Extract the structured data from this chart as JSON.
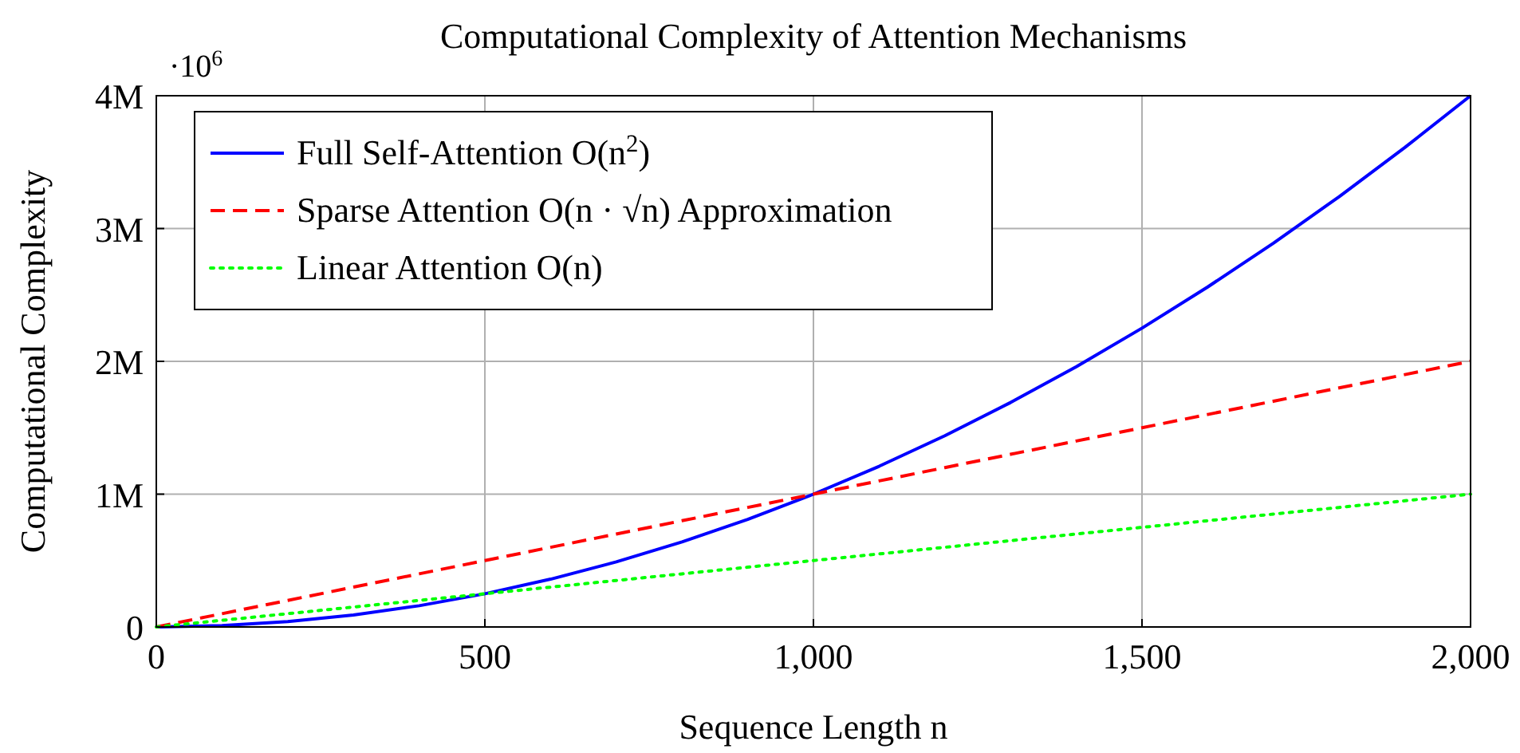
{
  "chart_data": {
    "type": "line",
    "title": "Computational Complexity of Attention Mechanisms",
    "xlabel": "Sequence Length $_{}$n",
    "ylabel": "Computational Complexity",
    "annotations": [
      "·10$^{6}$"
    ],
    "x": [
      0,
      100,
      200,
      300,
      400,
      500,
      600,
      700,
      800,
      900,
      1000,
      1100,
      1200,
      1300,
      1400,
      1500,
      1600,
      1700,
      1800,
      1900,
      2000
    ],
    "series": [
      {
        "name": "Full Self-Attention O(n$^{2}$)",
        "color": "#0000ff",
        "line_style": "solid",
        "values": [
          0,
          10000,
          40000,
          90000,
          160000,
          250000,
          360000,
          490000,
          640000,
          810000,
          1000000,
          1210000,
          1440000,
          1690000,
          1960000,
          2250000,
          2560000,
          2890000,
          3240000,
          3610000,
          4000000
        ]
      },
      {
        "name": "Sparse Attention O(n · √n) Approximation",
        "color": "#ff0000",
        "line_style": "dashed",
        "values": [
          0,
          100000,
          200000,
          300000,
          400000,
          500000,
          600000,
          700000,
          800000,
          900000,
          1000000,
          1100000,
          1200000,
          1300000,
          1400000,
          1500000,
          1600000,
          1700000,
          1800000,
          1900000,
          2000000
        ]
      },
      {
        "name": "Linear Attention O(n)",
        "color": "#00ff00",
        "line_style": "dotted",
        "values": [
          0,
          50000,
          100000,
          150000,
          200000,
          250000,
          300000,
          350000,
          400000,
          450000,
          500000,
          550000,
          600000,
          650000,
          700000,
          750000,
          800000,
          850000,
          900000,
          950000,
          1000000
        ]
      }
    ],
    "xlim": [
      0,
      2000
    ],
    "xticks": [
      0,
      500,
      {
        "value": 1000,
        "label": "1,000"
      },
      {
        "value": 1500,
        "label": "1,500"
      },
      {
        "value": 2000,
        "label": "2,000"
      }
    ],
    "ylim": [
      0,
      4000000
    ],
    "yticks": [
      0,
      {
        "value": 1000000,
        "label": "1M"
      },
      {
        "value": 2000000,
        "label": "2M"
      },
      {
        "value": 3000000,
        "label": "3M"
      },
      {
        "value": 4000000,
        "label": "4M"
      }
    ],
    "grid": true,
    "legend": "top left"
  }
}
